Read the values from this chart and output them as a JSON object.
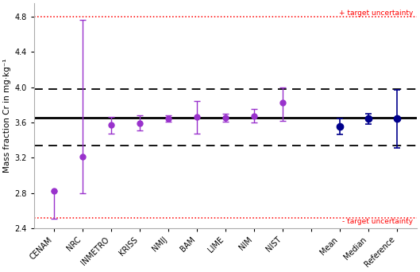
{
  "ylabel": "Mass fraction Cr in mg·kg⁻¹",
  "categories": [
    "CENAM",
    "NRC",
    "INMETRO",
    "KRISS",
    "NMIJ",
    "BAM",
    "LIME",
    "NIM",
    "NIST",
    "",
    "Mean",
    "Median",
    "Reference"
  ],
  "values": [
    2.82,
    3.21,
    3.57,
    3.59,
    3.645,
    3.66,
    3.655,
    3.675,
    3.82,
    null,
    3.55,
    3.64,
    3.64
  ],
  "err_low": [
    0.31,
    0.41,
    0.1,
    0.085,
    0.035,
    0.185,
    0.045,
    0.075,
    0.2,
    null,
    0.09,
    0.055,
    0.33
  ],
  "err_high": [
    0.0,
    1.55,
    0.095,
    0.09,
    0.035,
    0.185,
    0.045,
    0.075,
    0.175,
    null,
    0.09,
    0.055,
    0.33
  ],
  "reference_line": 3.655,
  "dashed_upper": 3.975,
  "dashed_lower": 3.335,
  "red_upper": 4.795,
  "red_lower": 2.515,
  "lab_color": "#9932CC",
  "summary_color": "#00008B",
  "ylim": [
    2.4,
    4.95
  ],
  "yticks": [
    2.4,
    2.8,
    3.2,
    3.6,
    4.0,
    4.4,
    4.8
  ],
  "background_color": "#ffffff",
  "plot_bg_color": "#ffffff"
}
